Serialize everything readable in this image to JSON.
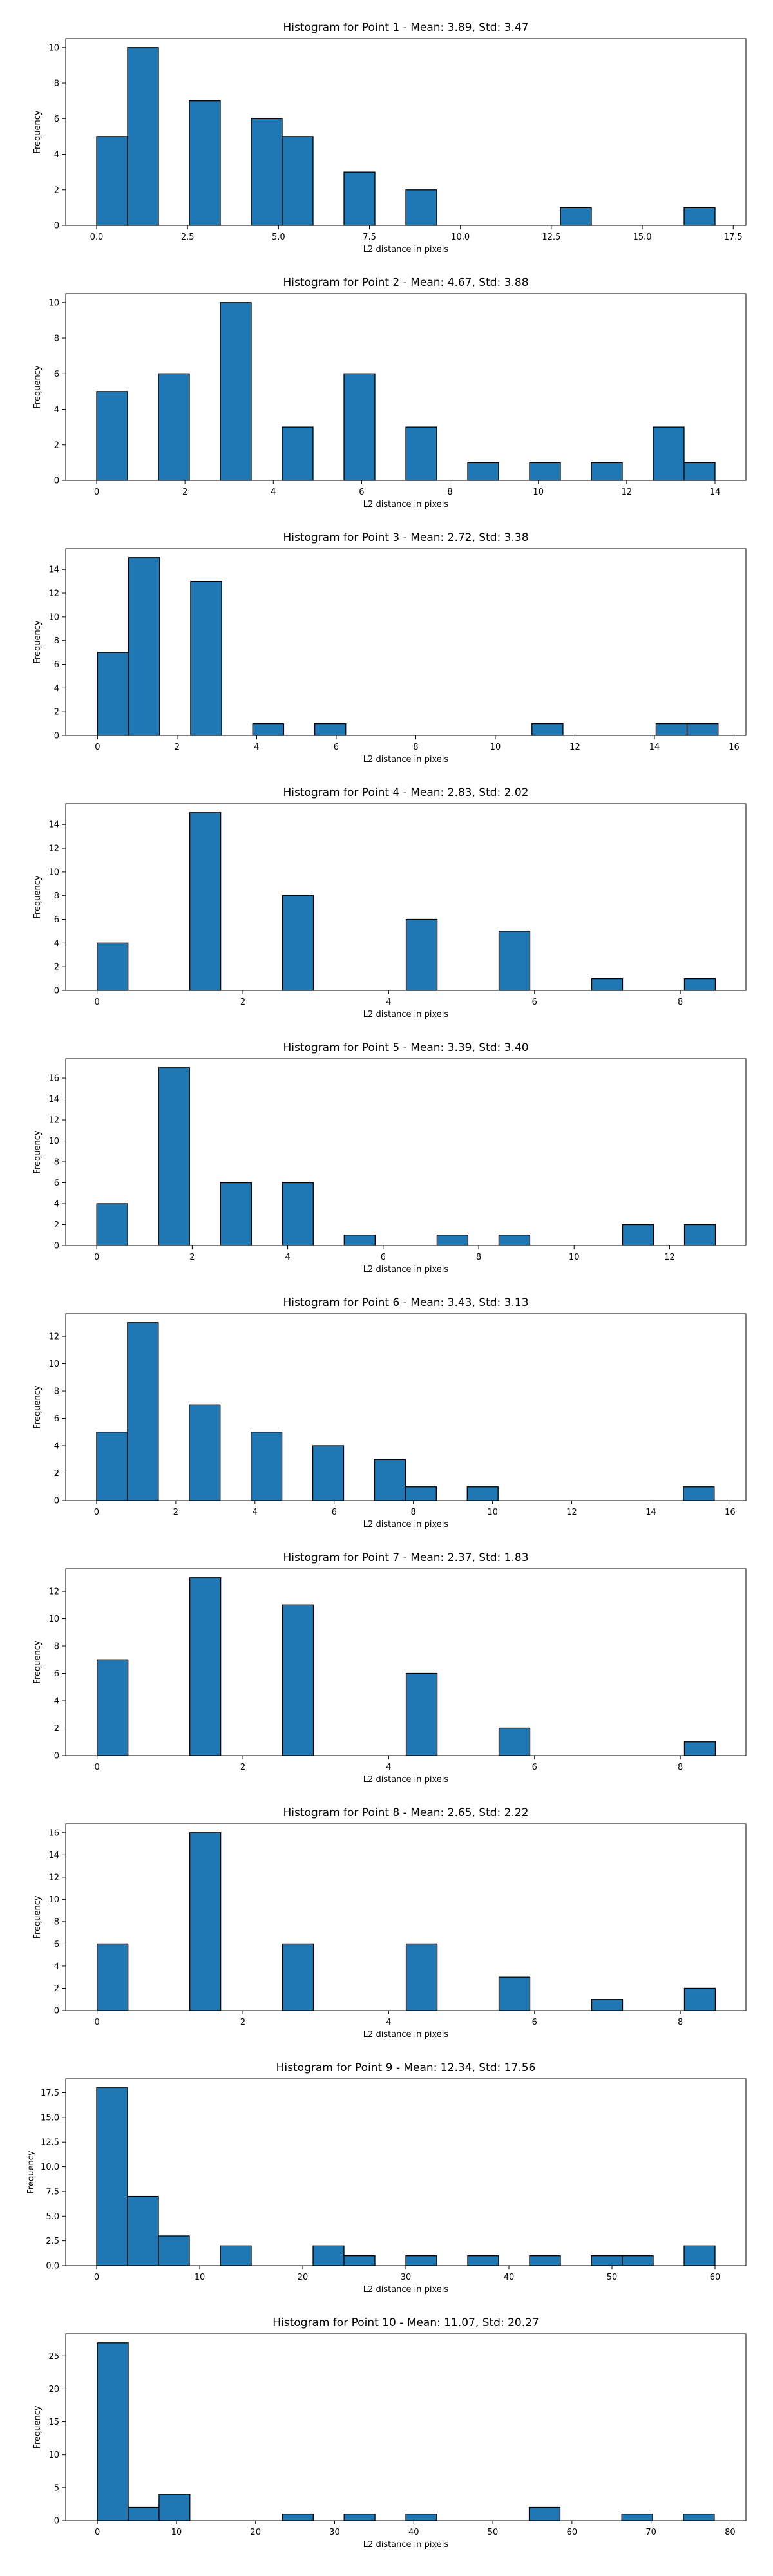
{
  "chart_data": [
    {
      "type": "bar",
      "title": "Histogram for Point 1 - Mean: 3.89, Std: 3.47",
      "xlabel": "L2 distance in pixels",
      "ylabel": "Frequency",
      "xlim": [
        -0.85,
        17.85
      ],
      "ylim": [
        0,
        10.5
      ],
      "xticks": [
        0,
        2.5,
        5,
        7.5,
        10,
        12.5,
        15,
        17.5
      ],
      "xtick_labels": [
        "0.0",
        "2.5",
        "5.0",
        "7.5",
        "10.0",
        "12.5",
        "15.0",
        "17.5"
      ],
      "yticks": [
        0,
        2,
        4,
        6,
        8,
        10
      ],
      "ytick_labels": [
        "0",
        "2",
        "4",
        "6",
        "8",
        "10"
      ],
      "bin_width": 0.85,
      "bins": [
        {
          "x": 0.0,
          "count": 5
        },
        {
          "x": 0.85,
          "count": 10
        },
        {
          "x": 2.55,
          "count": 7
        },
        {
          "x": 4.25,
          "count": 6
        },
        {
          "x": 5.1,
          "count": 5
        },
        {
          "x": 6.8,
          "count": 3
        },
        {
          "x": 8.5,
          "count": 2
        },
        {
          "x": 12.75,
          "count": 1
        },
        {
          "x": 16.15,
          "count": 1
        }
      ]
    },
    {
      "type": "bar",
      "title": "Histogram for Point 2 - Mean: 4.67, Std: 3.88",
      "xlabel": "L2 distance in pixels",
      "ylabel": "Frequency",
      "xlim": [
        -0.7,
        14.7
      ],
      "ylim": [
        0,
        10.5
      ],
      "xticks": [
        0,
        2,
        4,
        6,
        8,
        10,
        12,
        14
      ],
      "xtick_labels": [
        "0",
        "2",
        "4",
        "6",
        "8",
        "10",
        "12",
        "14"
      ],
      "yticks": [
        0,
        2,
        4,
        6,
        8,
        10
      ],
      "ytick_labels": [
        "0",
        "2",
        "4",
        "6",
        "8",
        "10"
      ],
      "bin_width": 0.7,
      "bins": [
        {
          "x": 0.0,
          "count": 5
        },
        {
          "x": 1.4,
          "count": 6
        },
        {
          "x": 2.8,
          "count": 10
        },
        {
          "x": 4.2,
          "count": 3
        },
        {
          "x": 5.6,
          "count": 6
        },
        {
          "x": 7.0,
          "count": 3
        },
        {
          "x": 8.4,
          "count": 1
        },
        {
          "x": 9.8,
          "count": 1
        },
        {
          "x": 11.2,
          "count": 1
        },
        {
          "x": 12.6,
          "count": 3
        },
        {
          "x": 13.3,
          "count": 1
        }
      ]
    },
    {
      "type": "bar",
      "title": "Histogram for Point 3 - Mean: 2.72, Std: 3.38",
      "xlabel": "L2 distance in pixels",
      "ylabel": "Frequency",
      "xlim": [
        -0.8,
        16.3
      ],
      "ylim": [
        0,
        15.75
      ],
      "xticks": [
        0,
        2,
        4,
        6,
        8,
        10,
        12,
        14,
        16
      ],
      "xtick_labels": [
        "0",
        "2",
        "4",
        "6",
        "8",
        "10",
        "12",
        "14",
        "16"
      ],
      "yticks": [
        0,
        2,
        4,
        6,
        8,
        10,
        12,
        14
      ],
      "ytick_labels": [
        "0",
        "2",
        "4",
        "6",
        "8",
        "10",
        "12",
        "14"
      ],
      "bin_width": 0.78,
      "bins": [
        {
          "x": 0.0,
          "count": 7
        },
        {
          "x": 0.78,
          "count": 15
        },
        {
          "x": 2.34,
          "count": 13
        },
        {
          "x": 3.9,
          "count": 1
        },
        {
          "x": 5.46,
          "count": 1
        },
        {
          "x": 10.92,
          "count": 1
        },
        {
          "x": 14.04,
          "count": 1
        },
        {
          "x": 14.82,
          "count": 1
        }
      ]
    },
    {
      "type": "bar",
      "title": "Histogram for Point 4 - Mean: 2.83, Std: 2.02",
      "xlabel": "L2 distance in pixels",
      "ylabel": "Frequency",
      "xlim": [
        -0.43,
        8.9
      ],
      "ylim": [
        0,
        15.75
      ],
      "xticks": [
        0,
        2,
        4,
        6,
        8
      ],
      "xtick_labels": [
        "0",
        "2",
        "4",
        "6",
        "8"
      ],
      "yticks": [
        0,
        2,
        4,
        6,
        8,
        10,
        12,
        14
      ],
      "ytick_labels": [
        "0",
        "2",
        "4",
        "6",
        "8",
        "10",
        "12",
        "14"
      ],
      "bin_width": 0.424,
      "bins": [
        {
          "x": 0.0,
          "count": 4
        },
        {
          "x": 1.272,
          "count": 15
        },
        {
          "x": 2.544,
          "count": 8
        },
        {
          "x": 4.24,
          "count": 6
        },
        {
          "x": 5.512,
          "count": 5
        },
        {
          "x": 6.784,
          "count": 1
        },
        {
          "x": 8.056,
          "count": 1
        }
      ]
    },
    {
      "type": "bar",
      "title": "Histogram for Point 5 - Mean: 3.39, Std: 3.40",
      "xlabel": "L2 distance in pixels",
      "ylabel": "Frequency",
      "xlim": [
        -0.65,
        13.6
      ],
      "ylim": [
        0,
        17.85
      ],
      "xticks": [
        0,
        2,
        4,
        6,
        8,
        10,
        12
      ],
      "xtick_labels": [
        "0",
        "2",
        "4",
        "6",
        "8",
        "10",
        "12"
      ],
      "yticks": [
        0,
        2,
        4,
        6,
        8,
        10,
        12,
        14,
        16
      ],
      "ytick_labels": [
        "0",
        "2",
        "4",
        "6",
        "8",
        "10",
        "12",
        "14",
        "16"
      ],
      "bin_width": 0.648,
      "bins": [
        {
          "x": 0.0,
          "count": 4
        },
        {
          "x": 1.296,
          "count": 17
        },
        {
          "x": 2.592,
          "count": 6
        },
        {
          "x": 3.888,
          "count": 6
        },
        {
          "x": 5.184,
          "count": 1
        },
        {
          "x": 7.128,
          "count": 1
        },
        {
          "x": 8.424,
          "count": 1
        },
        {
          "x": 11.016,
          "count": 2
        },
        {
          "x": 12.312,
          "count": 2
        }
      ]
    },
    {
      "type": "bar",
      "title": "Histogram for Point 6 - Mean: 3.43, Std: 3.13",
      "xlabel": "L2 distance in pixels",
      "ylabel": "Frequency",
      "xlim": [
        -0.78,
        16.4
      ],
      "ylim": [
        0,
        13.65
      ],
      "xticks": [
        0,
        2,
        4,
        6,
        8,
        10,
        12,
        14,
        16
      ],
      "xtick_labels": [
        "0",
        "2",
        "4",
        "6",
        "8",
        "10",
        "12",
        "14",
        "16"
      ],
      "yticks": [
        0,
        2,
        4,
        6,
        8,
        10,
        12
      ],
      "ytick_labels": [
        "0",
        "2",
        "4",
        "6",
        "8",
        "10",
        "12"
      ],
      "bin_width": 0.78,
      "bins": [
        {
          "x": 0.0,
          "count": 5
        },
        {
          "x": 0.78,
          "count": 13
        },
        {
          "x": 2.34,
          "count": 7
        },
        {
          "x": 3.9,
          "count": 5
        },
        {
          "x": 5.46,
          "count": 4
        },
        {
          "x": 7.02,
          "count": 3
        },
        {
          "x": 7.8,
          "count": 1
        },
        {
          "x": 9.36,
          "count": 1
        },
        {
          "x": 14.82,
          "count": 1
        }
      ]
    },
    {
      "type": "bar",
      "title": "Histogram for Point 7 - Mean: 2.37, Std: 1.83",
      "xlabel": "L2 distance in pixels",
      "ylabel": "Frequency",
      "xlim": [
        -0.43,
        8.9
      ],
      "ylim": [
        0,
        13.65
      ],
      "xticks": [
        0,
        2,
        4,
        6,
        8
      ],
      "xtick_labels": [
        "0",
        "2",
        "4",
        "6",
        "8"
      ],
      "yticks": [
        0,
        2,
        4,
        6,
        8,
        10,
        12
      ],
      "ytick_labels": [
        "0",
        "2",
        "4",
        "6",
        "8",
        "10",
        "12"
      ],
      "bin_width": 0.424,
      "bins": [
        {
          "x": 0.0,
          "count": 7
        },
        {
          "x": 1.272,
          "count": 13
        },
        {
          "x": 2.544,
          "count": 11
        },
        {
          "x": 4.24,
          "count": 6
        },
        {
          "x": 5.512,
          "count": 2
        },
        {
          "x": 8.056,
          "count": 1
        }
      ]
    },
    {
      "type": "bar",
      "title": "Histogram for Point 8 - Mean: 2.65, Std: 2.22",
      "xlabel": "L2 distance in pixels",
      "ylabel": "Frequency",
      "xlim": [
        -0.43,
        8.9
      ],
      "ylim": [
        0,
        16.8
      ],
      "xticks": [
        0,
        2,
        4,
        6,
        8
      ],
      "xtick_labels": [
        "0",
        "2",
        "4",
        "6",
        "8"
      ],
      "yticks": [
        0,
        2,
        4,
        6,
        8,
        10,
        12,
        14,
        16
      ],
      "ytick_labels": [
        "0",
        "2",
        "4",
        "6",
        "8",
        "10",
        "12",
        "14",
        "16"
      ],
      "bin_width": 0.424,
      "bins": [
        {
          "x": 0.0,
          "count": 6
        },
        {
          "x": 1.272,
          "count": 16
        },
        {
          "x": 2.544,
          "count": 6
        },
        {
          "x": 4.24,
          "count": 6
        },
        {
          "x": 5.512,
          "count": 3
        },
        {
          "x": 6.784,
          "count": 1
        },
        {
          "x": 8.056,
          "count": 2
        }
      ]
    },
    {
      "type": "bar",
      "title": "Histogram for Point 9 - Mean: 12.34, Std: 17.56",
      "xlabel": "L2 distance in pixels",
      "ylabel": "Frequency",
      "xlim": [
        -3,
        63
      ],
      "ylim": [
        0,
        18.9
      ],
      "xticks": [
        0,
        10,
        20,
        30,
        40,
        50,
        60
      ],
      "xtick_labels": [
        "0",
        "10",
        "20",
        "30",
        "40",
        "50",
        "60"
      ],
      "yticks": [
        0,
        2.5,
        5,
        7.5,
        10,
        12.5,
        15,
        17.5
      ],
      "ytick_labels": [
        "0.0",
        "2.5",
        "5.0",
        "7.5",
        "10.0",
        "12.5",
        "15.0",
        "17.5"
      ],
      "bin_width": 3,
      "bins": [
        {
          "x": 0,
          "count": 18
        },
        {
          "x": 3,
          "count": 7
        },
        {
          "x": 6,
          "count": 3
        },
        {
          "x": 12,
          "count": 2
        },
        {
          "x": 21,
          "count": 2
        },
        {
          "x": 24,
          "count": 1
        },
        {
          "x": 30,
          "count": 1
        },
        {
          "x": 36,
          "count": 1
        },
        {
          "x": 42,
          "count": 1
        },
        {
          "x": 48,
          "count": 1
        },
        {
          "x": 51,
          "count": 1
        },
        {
          "x": 57,
          "count": 2
        }
      ]
    },
    {
      "type": "bar",
      "title": "Histogram for Point 10 - Mean: 11.07, Std: 20.27",
      "xlabel": "L2 distance in pixels",
      "ylabel": "Frequency",
      "xlim": [
        -4,
        82
      ],
      "ylim": [
        0,
        28.35
      ],
      "xticks": [
        0,
        10,
        20,
        30,
        40,
        50,
        60,
        70,
        80
      ],
      "xtick_labels": [
        "0",
        "10",
        "20",
        "30",
        "40",
        "50",
        "60",
        "70",
        "80"
      ],
      "yticks": [
        0,
        5,
        10,
        15,
        20,
        25
      ],
      "ytick_labels": [
        "0",
        "5",
        "10",
        "15",
        "20",
        "25"
      ],
      "bin_width": 3.9,
      "bins": [
        {
          "x": 0,
          "count": 27
        },
        {
          "x": 3.9,
          "count": 2
        },
        {
          "x": 7.8,
          "count": 4
        },
        {
          "x": 23.4,
          "count": 1
        },
        {
          "x": 31.2,
          "count": 1
        },
        {
          "x": 39.0,
          "count": 1
        },
        {
          "x": 54.6,
          "count": 2
        },
        {
          "x": 66.3,
          "count": 1
        },
        {
          "x": 74.1,
          "count": 1
        }
      ]
    }
  ],
  "colors": {
    "bar_fill": "#1f77b4",
    "bar_edge": "#000000",
    "axes": "#000000"
  }
}
